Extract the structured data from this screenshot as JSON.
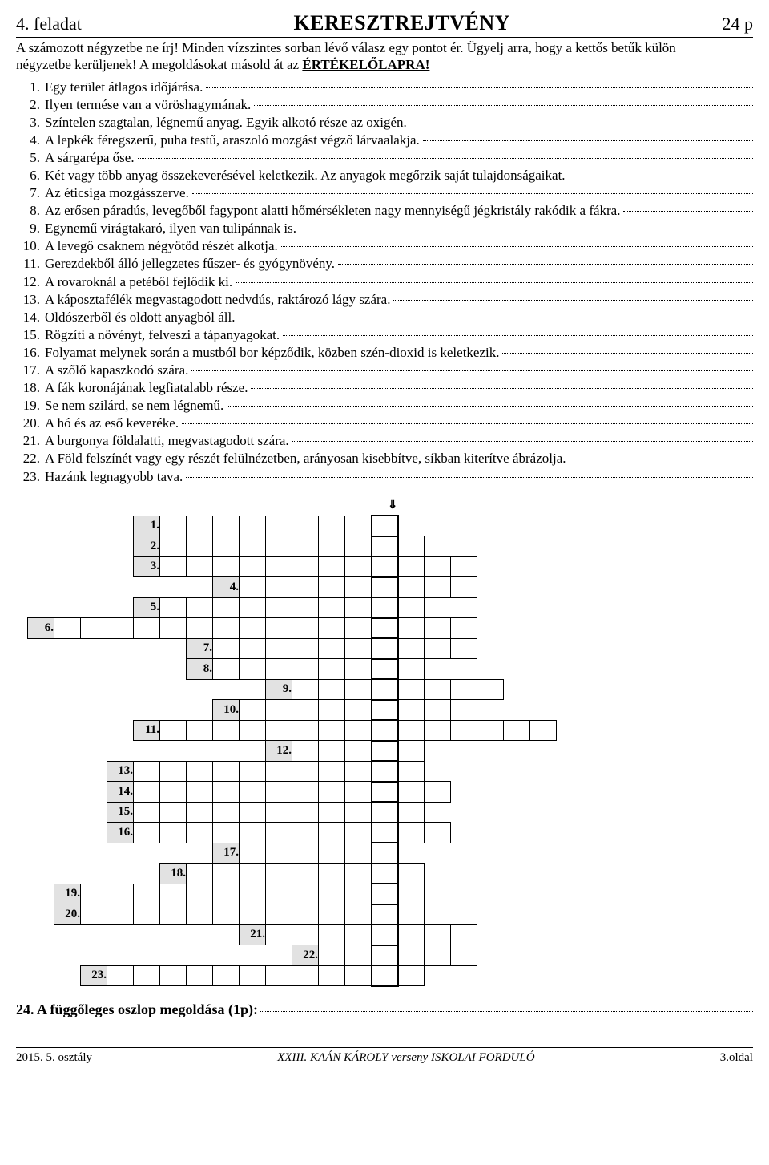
{
  "header": {
    "task_no": "4. feladat",
    "title": "KERESZTREJTVÉNY",
    "points": "24 p"
  },
  "instructions": {
    "line1a": "A számozott négyzetbe ne írj! Minden vízszintes sorban lévő válasz egy pontot ér. Ügyelj arra, hogy a kettős betűk külön",
    "line2a": "négyzetbe kerüljenek! A megoldásokat másold át az ",
    "line2b": "ÉRTÉKELŐLAPRA!"
  },
  "clues": [
    {
      "n": "1.",
      "t": "Egy terület átlagos időjárása."
    },
    {
      "n": "2.",
      "t": "Ilyen termése van a vöröshagymának."
    },
    {
      "n": "3.",
      "t": "Színtelen szagtalan, légnemű anyag. Egyik alkotó része az oxigén."
    },
    {
      "n": "4.",
      "t": "A lepkék féregszerű, puha testű, araszoló mozgást végző lárvaalakja."
    },
    {
      "n": "5.",
      "t": "A sárgarépa őse."
    },
    {
      "n": "6.",
      "t": "Két vagy több anyag összekeverésével keletkezik. Az anyagok megőrzik saját tulajdonságaikat."
    },
    {
      "n": "7.",
      "t": "Az éticsiga mozgásszerve."
    },
    {
      "n": "8.",
      "t": "Az erősen páradús, levegőből fagypont alatti hőmérsékleten nagy mennyiségű jégkristály rakódik a fákra."
    },
    {
      "n": "9.",
      "t": "Egynemű virágtakaró, ilyen van tulipánnak is."
    },
    {
      "n": "10.",
      "t": "A levegő csaknem négyötöd részét alkotja."
    },
    {
      "n": "11.",
      "t": "Gerezdekből álló jellegzetes fűszer- és gyógynövény."
    },
    {
      "n": "12.",
      "t": "A rovaroknál a petéből fejlődik ki."
    },
    {
      "n": "13.",
      "t": "A káposztafélék megvastagodott nedvdús, raktározó lágy szára."
    },
    {
      "n": "14.",
      "t": "Oldószerből és oldott anyagból áll."
    },
    {
      "n": "15.",
      "t": "Rögzíti a növényt, felveszi a tápanyagokat."
    },
    {
      "n": "16.",
      "t": "Folyamat melynek során a mustból bor képződik, közben szén-dioxid is keletkezik."
    },
    {
      "n": "17.",
      "t": "A szőlő kapaszkodó szára."
    },
    {
      "n": "18.",
      "t": "A fák koronájának legfiatalabb része."
    },
    {
      "n": "19.",
      "t": "Se nem szilárd, se nem légnemű."
    },
    {
      "n": "20.",
      "t": "A hó és az eső keveréke."
    },
    {
      "n": "21.",
      "t": "A burgonya földalatti, megvastagodott szára."
    },
    {
      "n": "22.",
      "t": "A Föld felszínét vagy egy részét felülnézetben, arányosan kisebbítve, síkban kiterítve ábrázolja."
    },
    {
      "n": "23.",
      "t": "Hazánk legnagyobb tava."
    }
  ],
  "grid": {
    "cols": 27,
    "solution_col": 13,
    "arrow_glyph": "⇓",
    "rows": [
      {
        "label": "1.",
        "label_col": 4,
        "start": 5,
        "end": 13
      },
      {
        "label": "2.",
        "label_col": 4,
        "start": 5,
        "end": 14
      },
      {
        "label": "3.",
        "label_col": 4,
        "start": 5,
        "end": 16
      },
      {
        "label": "4.",
        "label_col": 7,
        "start": 8,
        "end": 16
      },
      {
        "label": "5.",
        "label_col": 4,
        "start": 5,
        "end": 14
      },
      {
        "label": "6.",
        "label_col": 0,
        "start": 1,
        "end": 16
      },
      {
        "label": "7.",
        "label_col": 6,
        "start": 7,
        "end": 16
      },
      {
        "label": "8.",
        "label_col": 6,
        "start": 7,
        "end": 14
      },
      {
        "label": "9.",
        "label_col": 9,
        "start": 10,
        "end": 17
      },
      {
        "label": "10.",
        "label_col": 7,
        "start": 8,
        "end": 15
      },
      {
        "label": "11.",
        "label_col": 4,
        "start": 5,
        "end": 19
      },
      {
        "label": "12.",
        "label_col": 9,
        "start": 10,
        "end": 14
      },
      {
        "label": "13.",
        "label_col": 3,
        "start": 4,
        "end": 14
      },
      {
        "label": "14.",
        "label_col": 3,
        "start": 4,
        "end": 15
      },
      {
        "label": "15.",
        "label_col": 3,
        "start": 4,
        "end": 14
      },
      {
        "label": "16.",
        "label_col": 3,
        "start": 4,
        "end": 15
      },
      {
        "label": "17.",
        "label_col": 7,
        "start": 8,
        "end": 13
      },
      {
        "label": "18.",
        "label_col": 5,
        "start": 6,
        "end": 14
      },
      {
        "label": "19.",
        "label_col": 1,
        "start": 2,
        "end": 14
      },
      {
        "label": "20.",
        "label_col": 1,
        "start": 2,
        "end": 14
      },
      {
        "label": "21.",
        "label_col": 8,
        "start": 9,
        "end": 16
      },
      {
        "label": "22.",
        "label_col": 10,
        "start": 11,
        "end": 16
      },
      {
        "label": "23.",
        "label_col": 2,
        "start": 3,
        "end": 14
      }
    ]
  },
  "q24": "24. A függőleges oszlop megoldása (1p):",
  "footer": {
    "left": "2015. 5. osztály",
    "mid": "XXIII. KAÁN KÁROLY verseny ISKOLAI FORDULÓ",
    "right": "3.oldal"
  }
}
